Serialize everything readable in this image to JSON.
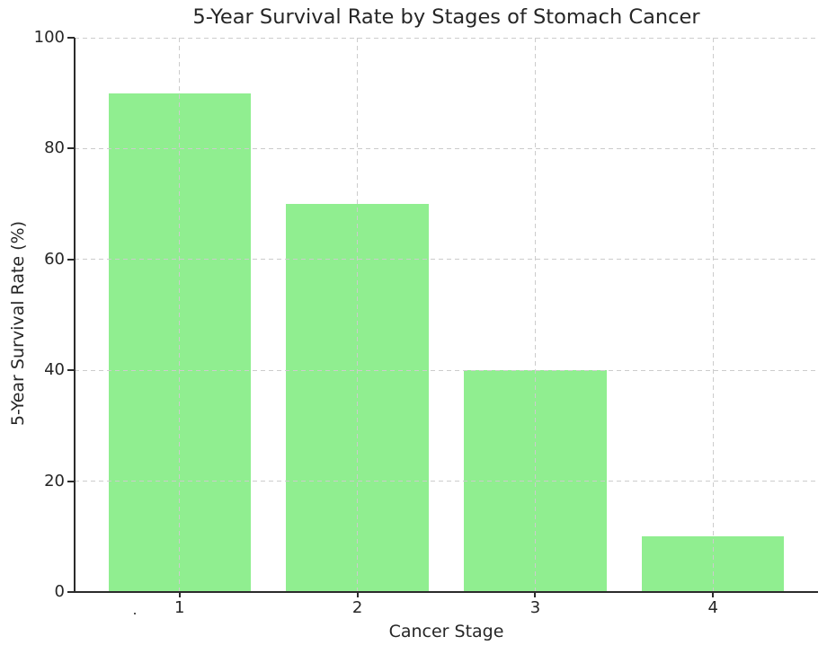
{
  "chart_data": {
    "type": "bar",
    "title": "5-Year Survival Rate by Stages of Stomach Cancer",
    "xlabel": "Cancer Stage",
    "ylabel": "5-Year Survival Rate (%)",
    "categories": [
      "1",
      "2",
      "3",
      "4"
    ],
    "values": [
      90,
      70,
      40,
      10
    ],
    "x_positions": [
      1,
      2,
      3,
      4
    ],
    "bar_width_units": 0.8,
    "xlim": [
      0.41,
      4.59
    ],
    "ylim": [
      0,
      100
    ],
    "yticks": [
      0,
      20,
      40,
      60,
      80,
      100
    ],
    "grid": "dashed, horizontal at y-ticks and vertical at x-ticks, drawn above bars",
    "legend": "none",
    "colors": {
      "bar": "#90EE90",
      "grid": "#cccccc",
      "spine": "#2b2b2b",
      "text": "#262626",
      "background": "#ffffff"
    }
  }
}
